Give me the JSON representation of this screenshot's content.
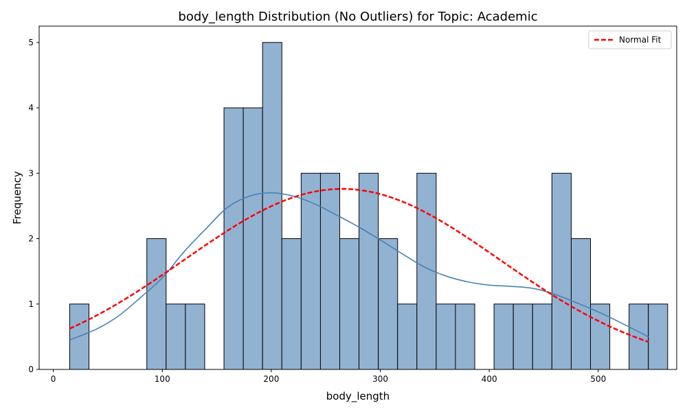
{
  "chart_data": {
    "type": "bar",
    "title": "body_length Distribution (No Outliers) for Topic: Academic",
    "xlabel": "body_length",
    "ylabel": "Frequency",
    "xlim": [
      -13,
      572
    ],
    "ylim": [
      0,
      5.25
    ],
    "xticks": [
      0,
      100,
      200,
      300,
      400,
      500
    ],
    "yticks": [
      0,
      1,
      2,
      3,
      4,
      5
    ],
    "bin_start": 15,
    "bin_width": 17.7,
    "counts": [
      1,
      0,
      0,
      0,
      2,
      1,
      1,
      0,
      4,
      4,
      5,
      2,
      3,
      3,
      2,
      3,
      2,
      1,
      3,
      1,
      1,
      0,
      1,
      1,
      1,
      3,
      2,
      1,
      0,
      1,
      1
    ],
    "colors": {
      "bar_fill": "#92b2d2",
      "bar_edge": "#000000",
      "kde": "#4682b4",
      "normal_fit": "#ff0000"
    },
    "kde_curve": {
      "x": [
        15,
        40,
        60,
        80,
        100,
        120,
        140,
        160,
        180,
        200,
        220,
        240,
        260,
        280,
        300,
        320,
        340,
        360,
        380,
        400,
        420,
        440,
        460,
        480,
        500,
        520,
        546
      ],
      "y": [
        0.45,
        0.62,
        0.82,
        1.1,
        1.4,
        1.8,
        2.15,
        2.48,
        2.65,
        2.7,
        2.65,
        2.53,
        2.36,
        2.18,
        1.98,
        1.77,
        1.57,
        1.43,
        1.34,
        1.29,
        1.27,
        1.24,
        1.15,
        1.02,
        0.88,
        0.72,
        0.5
      ]
    },
    "normal_fit": {
      "label": "Normal Fit",
      "mean": 265,
      "sd": 145,
      "peak": 2.76,
      "x_range": [
        15,
        546
      ]
    },
    "legend": {
      "placement": "top-right",
      "entries": [
        "Normal Fit"
      ]
    },
    "grid": false
  }
}
